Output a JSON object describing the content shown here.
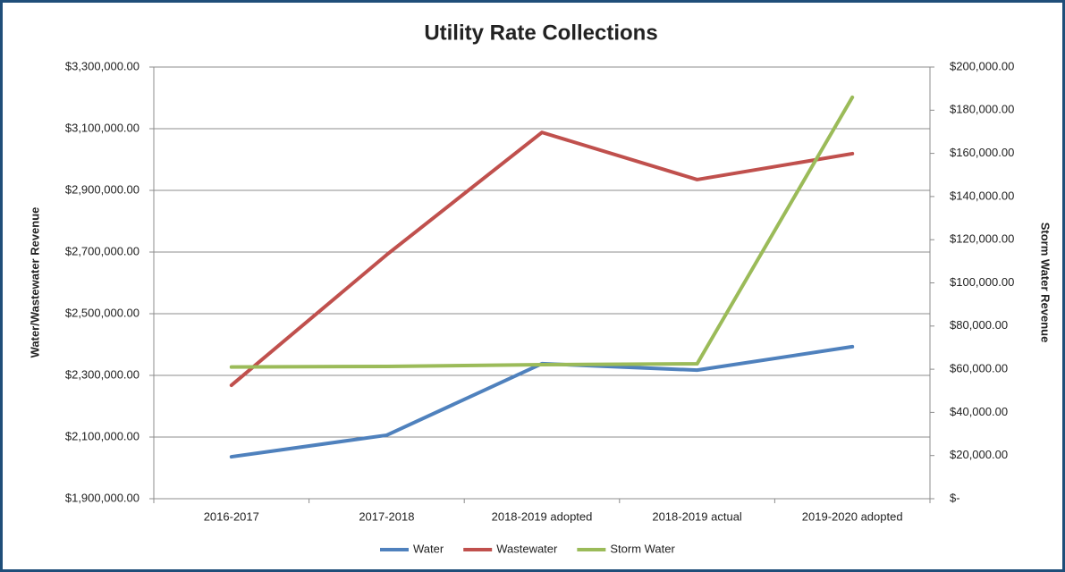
{
  "chart_data": {
    "type": "line",
    "title": "Utility Rate Collections",
    "y_label": "Water/Wastewater Revenue",
    "y2_label": "Storm Water Revenue",
    "categories": [
      "2016-2017",
      "2017-2018",
      "2018-2019 adopted",
      "2018-2019 actual",
      "2019-2020 adopted"
    ],
    "series": [
      {
        "name": "Water",
        "color": "#4f81bd",
        "values": [
          2036000,
          2106000,
          2338000,
          2317000,
          2393000
        ]
      },
      {
        "name": "Wastewater",
        "color": "#c0504d",
        "values": [
          2268000,
          2691000,
          3088000,
          2935000,
          3019000
        ]
      },
      {
        "name": "Storm Water",
        "color": "#9bbb59",
        "axis": "y2",
        "values": [
          61000,
          61300,
          62100,
          62500,
          186000
        ]
      }
    ],
    "ylim": [
      1900000,
      3300000
    ],
    "yticks": [
      {
        "value": 1900000,
        "label": "$1,900,000.00"
      },
      {
        "value": 2100000,
        "label": "$2,100,000.00"
      },
      {
        "value": 2300000,
        "label": "$2,300,000.00"
      },
      {
        "value": 2500000,
        "label": "$2,500,000.00"
      },
      {
        "value": 2700000,
        "label": "$2,700,000.00"
      },
      {
        "value": 2900000,
        "label": "$2,900,000.00"
      },
      {
        "value": 3100000,
        "label": "$3,100,000.00"
      },
      {
        "value": 3300000,
        "label": "$3,300,000.00"
      }
    ],
    "y2lim": [
      0,
      200000
    ],
    "y2ticks": [
      {
        "value": 0,
        "label": "$-"
      },
      {
        "value": 20000,
        "label": "$20,000.00"
      },
      {
        "value": 40000,
        "label": "$40,000.00"
      },
      {
        "value": 60000,
        "label": "$60,000.00"
      },
      {
        "value": 80000,
        "label": "$80,000.00"
      },
      {
        "value": 100000,
        "label": "$100,000.00"
      },
      {
        "value": 120000,
        "label": "$120,000.00"
      },
      {
        "value": 140000,
        "label": "$140,000.00"
      },
      {
        "value": 160000,
        "label": "$160,000.00"
      },
      {
        "value": 180000,
        "label": "$180,000.00"
      },
      {
        "value": 200000,
        "label": "$200,000.00"
      }
    ],
    "grid": true,
    "legend": "bottom"
  }
}
